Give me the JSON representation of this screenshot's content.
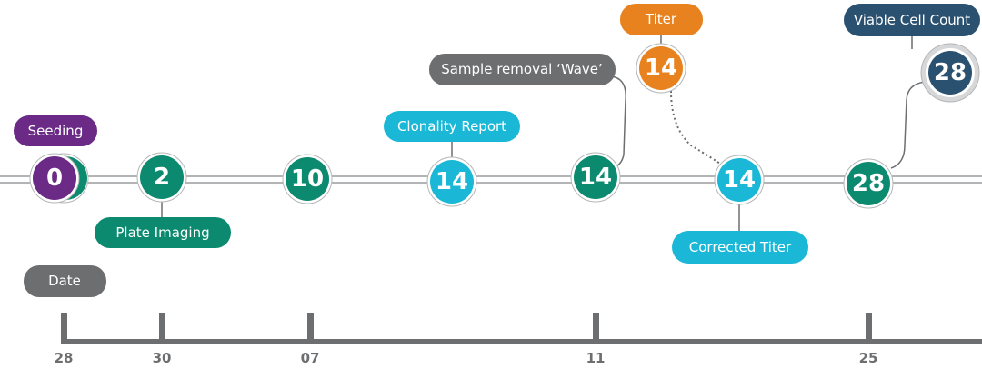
{
  "nodes": [
    {
      "number": "0",
      "label": "Seeding"
    },
    {
      "number": "2",
      "label": "Plate Imaging"
    },
    {
      "number": "10"
    },
    {
      "number": "14",
      "label": "Clonality Report"
    },
    {
      "number": "14",
      "label": "Sample removal ‘Wave’"
    },
    {
      "number": "14",
      "label": "Titer"
    },
    {
      "number": "14",
      "label": "Corrected Titer"
    },
    {
      "number": "28"
    },
    {
      "number": "28",
      "label": "Viable Cell Count"
    }
  ],
  "date_axis": {
    "label": "Date",
    "ticks": [
      "28",
      "30",
      "07",
      "11",
      "25"
    ]
  }
}
